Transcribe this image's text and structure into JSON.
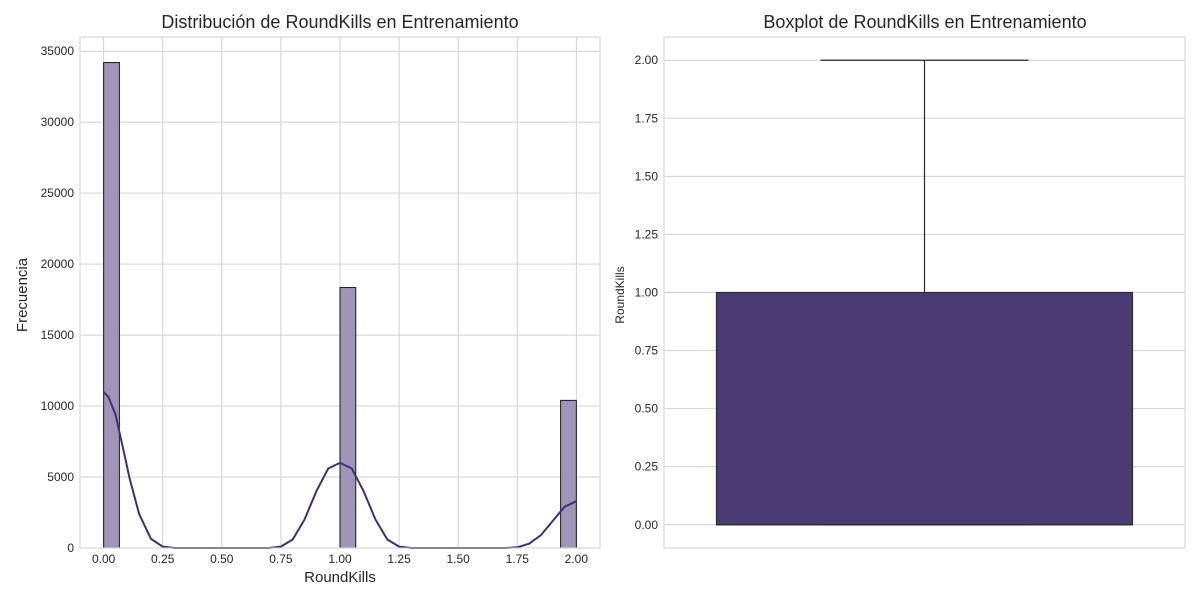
{
  "colors": {
    "hist_fill": "#9e95b8",
    "hist_edge": "#1a1a1a",
    "kde_line": "#3f2f79",
    "box_fill": "#4b3b74",
    "box_edge": "#2b2b2b",
    "grid": "#d2d2d2"
  },
  "chart_data": [
    {
      "type": "bar",
      "title": "Distribución de RoundKills en Entrenamiento",
      "xlabel": "RoundKills",
      "ylabel": "Frecuencia",
      "xlim": [
        -0.1,
        2.1
      ],
      "ylim": [
        0,
        36000
      ],
      "xticks": [
        0.0,
        0.25,
        0.5,
        0.75,
        1.0,
        1.25,
        1.5,
        1.75,
        2.0
      ],
      "xtick_labels": [
        "0.00",
        "0.25",
        "0.50",
        "0.75",
        "1.00",
        "1.25",
        "1.50",
        "1.75",
        "2.00"
      ],
      "yticks": [
        0,
        5000,
        10000,
        15000,
        20000,
        25000,
        30000,
        35000
      ],
      "ytick_labels": [
        "0",
        "5000",
        "10000",
        "15000",
        "20000",
        "25000",
        "30000",
        "35000"
      ],
      "grid": true,
      "bars": [
        {
          "x0": 0.0,
          "x1": 0.0667,
          "value": 34200
        },
        {
          "x0": 1.0,
          "x1": 1.0667,
          "value": 18350
        },
        {
          "x0": 1.9333,
          "x1": 2.0,
          "value": 10400
        }
      ],
      "kde": {
        "x": [
          0.0,
          0.02,
          0.05,
          0.08,
          0.11,
          0.15,
          0.2,
          0.25,
          0.3,
          0.7,
          0.75,
          0.8,
          0.85,
          0.9,
          0.95,
          1.0,
          1.05,
          1.1,
          1.15,
          1.2,
          1.25,
          1.3,
          1.7,
          1.75,
          1.8,
          1.85,
          1.9,
          1.95,
          2.0
        ],
        "value": [
          11000,
          10650,
          9400,
          7200,
          4900,
          2400,
          650,
          100,
          0,
          0,
          100,
          600,
          2000,
          4000,
          5600,
          6000,
          5600,
          4000,
          2000,
          600,
          100,
          0,
          0,
          50,
          300,
          900,
          1900,
          2900,
          3300
        ]
      }
    },
    {
      "type": "box",
      "title": "Boxplot de RoundKills en Entrenamiento",
      "xlabel": "",
      "ylabel": "RoundKills",
      "ylim": [
        -0.1,
        2.1
      ],
      "yticks": [
        0.0,
        0.25,
        0.5,
        0.75,
        1.0,
        1.25,
        1.5,
        1.75,
        2.0
      ],
      "ytick_labels": [
        "0.00",
        "0.25",
        "0.50",
        "0.75",
        "1.00",
        "1.25",
        "1.50",
        "1.75",
        "2.00"
      ],
      "grid": true,
      "stats": {
        "min": 0.0,
        "q1": 0.0,
        "median": 0.0,
        "q3": 1.0,
        "max": 2.0
      }
    }
  ]
}
